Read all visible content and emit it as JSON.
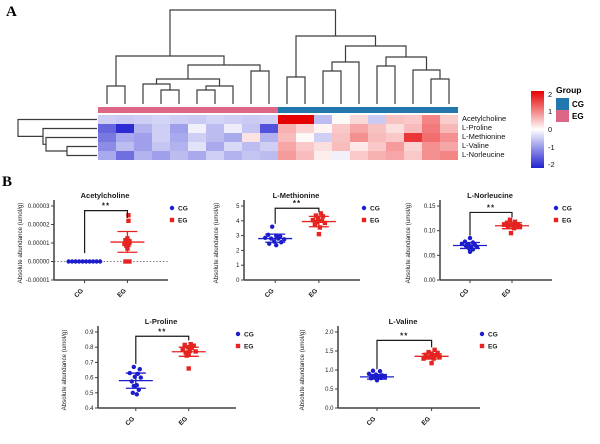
{
  "figure": {
    "panel_a_label": "A",
    "panel_b_label": "B"
  },
  "colors": {
    "point_blue": "#1c1ccd",
    "point_red": "#e52421",
    "axis": "#404040",
    "heat_red": "#e60000",
    "heat_blue": "#2222d0",
    "cg_group": "#2277ad",
    "eg_group": "#dd6686",
    "dendrogram": "#3c3c3c"
  },
  "chart_data": [
    {
      "id": "heatmap",
      "type": "heatmap",
      "row_labels": [
        "Acetylcholine",
        "L-Proline",
        "L-Methionine",
        "L-Valine",
        "L-Norleucine"
      ],
      "col_group_bar": [
        {
          "group": "EG",
          "count": 10
        },
        {
          "group": "CG",
          "count": 10
        }
      ],
      "zlim": [
        -2,
        2
      ],
      "colorbar_ticks": [
        "2",
        "1",
        "0",
        "-1",
        "-2"
      ],
      "legend_title": "Group",
      "legend_entries": [
        {
          "label": "CG",
          "color": "#2277ad"
        },
        {
          "label": "EG",
          "color": "#dd6686"
        }
      ],
      "values": [
        [
          -0.5,
          -0.55,
          -0.5,
          -0.45,
          -0.5,
          -0.55,
          -0.45,
          -0.5,
          -0.55,
          -0.5,
          2.3,
          2.6,
          -0.7,
          0.05,
          0.35,
          -0.55,
          0.55,
          0.5,
          1.1,
          0.45
        ],
        [
          -1.6,
          -2.2,
          -0.8,
          -0.5,
          -1.0,
          -0.15,
          -0.7,
          -0.2,
          -0.6,
          -1.8,
          0.7,
          0.4,
          0.1,
          0.5,
          0.8,
          0.55,
          0.3,
          0.6,
          1.2,
          0.65
        ],
        [
          -1.4,
          -0.9,
          -1.0,
          -0.5,
          -0.9,
          -0.5,
          -0.7,
          -0.9,
          0.25,
          -0.8,
          0.6,
          0.05,
          -0.5,
          0.55,
          1.0,
          0.6,
          0.5,
          1.8,
          1.3,
          1.0
        ],
        [
          -1.2,
          -0.7,
          -1.0,
          -0.6,
          -0.8,
          -0.3,
          -0.9,
          -0.4,
          -0.7,
          -0.5,
          0.8,
          0.5,
          0.3,
          0.6,
          0.2,
          0.5,
          0.9,
          0.4,
          1.0,
          0.8
        ],
        [
          -0.9,
          -1.5,
          -0.8,
          -1.0,
          -0.7,
          -0.9,
          -0.5,
          -0.8,
          -0.6,
          -0.7,
          0.9,
          0.6,
          0.15,
          -0.15,
          0.5,
          0.7,
          0.8,
          0.5,
          1.0,
          1.1
        ]
      ]
    },
    {
      "id": "acetylcholine",
      "type": "scatter",
      "title": "Acetylcholine",
      "ylabel": "Absolute abundance (umol/g)",
      "categories": [
        "CG",
        "EG"
      ],
      "ylim": [
        -1e-05,
        3e-05
      ],
      "yticks": [
        [
          -1e-05,
          "-0.00001"
        ],
        [
          0,
          "0.00000"
        ],
        [
          1e-05,
          "0.00001"
        ],
        [
          2e-05,
          "0.00002"
        ],
        [
          3e-05,
          "0.00003"
        ]
      ],
      "zero_line": true,
      "cg_points": [
        [
          -16,
          0
        ],
        [
          -12.5,
          0
        ],
        [
          -9,
          0
        ],
        [
          -5.5,
          0
        ],
        [
          -2,
          0
        ],
        [
          1.5,
          0
        ],
        [
          5,
          0
        ],
        [
          8.5,
          0
        ],
        [
          12,
          0
        ],
        [
          15.5,
          0
        ]
      ],
      "eg_points": [
        [
          1,
          2.5e-05
        ],
        [
          1,
          2.2e-05
        ],
        [
          0,
          1.25e-05
        ],
        [
          -2,
          1.15e-05
        ],
        [
          2,
          1.1e-05
        ],
        [
          -1,
          1.05e-05
        ],
        [
          2,
          1e-05
        ],
        [
          -3,
          9.5e-06
        ],
        [
          1,
          9e-06
        ],
        [
          -1,
          8.5e-06
        ],
        [
          0,
          7e-06
        ],
        [
          -2,
          0
        ],
        [
          2,
          0
        ]
      ],
      "cg_stats": null,
      "eg_stats": {
        "mean": 1.05e-05,
        "lo": 5e-06,
        "hi": 1.62e-05
      },
      "sig": {
        "label": "**",
        "top": 2.75e-05,
        "left_drop": 4.5e-06,
        "right_drop": 2.35e-05
      }
    },
    {
      "id": "methionine",
      "type": "scatter",
      "title": "L-Methionine",
      "ylabel": "Absolute abundance (umol/g)",
      "categories": [
        "CG",
        "EG"
      ],
      "ylim": [
        0,
        5
      ],
      "yticks": [
        [
          0,
          "0"
        ],
        [
          1,
          "1"
        ],
        [
          2,
          "2"
        ],
        [
          3,
          "3"
        ],
        [
          4,
          "4"
        ],
        [
          5,
          "5"
        ]
      ],
      "zero_line": false,
      "cg_points": [
        [
          -3,
          3.6
        ],
        [
          -7,
          3.05
        ],
        [
          1,
          3.0
        ],
        [
          5,
          2.95
        ],
        [
          -10,
          2.85
        ],
        [
          -4,
          2.8
        ],
        [
          3,
          2.8
        ],
        [
          9,
          2.75
        ],
        [
          -1,
          2.6
        ],
        [
          6,
          2.55
        ],
        [
          -6,
          2.45
        ],
        [
          1,
          2.35
        ]
      ],
      "eg_points": [
        [
          2,
          4.5
        ],
        [
          -3,
          4.35
        ],
        [
          4,
          4.3
        ],
        [
          -1,
          4.15
        ],
        [
          -6,
          4.05
        ],
        [
          3,
          4.0
        ],
        [
          -2,
          3.9
        ],
        [
          6,
          3.85
        ],
        [
          -4,
          3.75
        ],
        [
          1,
          3.55
        ],
        [
          0,
          3.1
        ]
      ],
      "cg_stats": {
        "mean": 2.8,
        "lo": 2.55,
        "hi": 3.1
      },
      "eg_stats": {
        "mean": 3.95,
        "lo": 3.6,
        "hi": 4.3
      },
      "sig": {
        "label": "**",
        "top": 4.85,
        "left_drop": 3.8,
        "right_drop": 4.6
      }
    },
    {
      "id": "norleucine",
      "type": "scatter",
      "title": "L-Norleucine",
      "ylabel": "Absolute abundance (umol/g)",
      "categories": [
        "CG",
        "EG"
      ],
      "ylim": [
        0,
        0.15
      ],
      "yticks": [
        [
          0,
          "0.00"
        ],
        [
          0.05,
          "0.05"
        ],
        [
          0.1,
          "0.10"
        ],
        [
          0.15,
          "0.15"
        ]
      ],
      "zero_line": false,
      "cg_points": [
        [
          0,
          0.085
        ],
        [
          -5,
          0.078
        ],
        [
          3,
          0.076
        ],
        [
          -8,
          0.073
        ],
        [
          -2,
          0.072
        ],
        [
          5,
          0.071
        ],
        [
          -4,
          0.069
        ],
        [
          1,
          0.068
        ],
        [
          7,
          0.067
        ],
        [
          -1,
          0.064
        ],
        [
          3,
          0.062
        ],
        [
          0,
          0.057
        ]
      ],
      "eg_points": [
        [
          -2,
          0.122
        ],
        [
          3,
          0.118
        ],
        [
          -5,
          0.116
        ],
        [
          1,
          0.114
        ],
        [
          6,
          0.113
        ],
        [
          -8,
          0.112
        ],
        [
          -1,
          0.111
        ],
        [
          4,
          0.11
        ],
        [
          8,
          0.109
        ],
        [
          -4,
          0.108
        ],
        [
          2,
          0.105
        ],
        [
          -1,
          0.095
        ]
      ],
      "cg_stats": {
        "mean": 0.07,
        "lo": 0.064,
        "hi": 0.076
      },
      "eg_stats": {
        "mean": 0.11,
        "lo": 0.104,
        "hi": 0.116
      },
      "sig": {
        "label": "**",
        "top": 0.137,
        "left_drop": 0.09,
        "right_drop": 0.127
      }
    },
    {
      "id": "proline",
      "type": "scatter",
      "title": "L-Proline",
      "ylabel": "Absolute abundance (umol/g)",
      "categories": [
        "CG",
        "EG"
      ],
      "ylim": [
        0.4,
        0.9
      ],
      "yticks": [
        [
          0.4,
          "0.4"
        ],
        [
          0.5,
          "0.5"
        ],
        [
          0.6,
          "0.6"
        ],
        [
          0.7,
          "0.7"
        ],
        [
          0.8,
          "0.8"
        ],
        [
          0.9,
          "0.9"
        ]
      ],
      "zero_line": false,
      "cg_points": [
        [
          -2,
          0.67
        ],
        [
          4,
          0.655
        ],
        [
          -6,
          0.63
        ],
        [
          2,
          0.625
        ],
        [
          -1,
          0.605
        ],
        [
          5,
          0.6
        ],
        [
          -4,
          0.575
        ],
        [
          1,
          0.55
        ],
        [
          -2,
          0.545
        ],
        [
          3,
          0.52
        ],
        [
          -3,
          0.5
        ],
        [
          1,
          0.49
        ]
      ],
      "eg_points": [
        [
          2,
          0.82
        ],
        [
          -4,
          0.815
        ],
        [
          5,
          0.81
        ],
        [
          -1,
          0.8
        ],
        [
          3,
          0.795
        ],
        [
          -6,
          0.785
        ],
        [
          1,
          0.775
        ],
        [
          7,
          0.772
        ],
        [
          -3,
          0.765
        ],
        [
          0,
          0.755
        ],
        [
          -2,
          0.745
        ],
        [
          0,
          0.66
        ]
      ],
      "cg_stats": {
        "mean": 0.58,
        "lo": 0.53,
        "hi": 0.63
      },
      "eg_stats": {
        "mean": 0.77,
        "lo": 0.74,
        "hi": 0.8
      },
      "sig": {
        "label": "**",
        "top": 0.872,
        "left_drop": 0.69,
        "right_drop": 0.845
      }
    },
    {
      "id": "valine",
      "type": "scatter",
      "title": "L-Valine",
      "ylabel": "Absolute abundance (umol/g)",
      "categories": [
        "CG",
        "EG"
      ],
      "ylim": [
        0,
        2
      ],
      "yticks": [
        [
          0,
          "0.0"
        ],
        [
          0.5,
          "0.5"
        ],
        [
          1.0,
          "1.0"
        ],
        [
          1.5,
          "1.5"
        ],
        [
          2.0,
          "2.0"
        ]
      ],
      "zero_line": false,
      "cg_points": [
        [
          -4,
          0.98
        ],
        [
          3,
          0.97
        ],
        [
          -8,
          0.9
        ],
        [
          -1,
          0.88
        ],
        [
          5,
          0.86
        ],
        [
          -5,
          0.84
        ],
        [
          1,
          0.83
        ],
        [
          8,
          0.82
        ],
        [
          -2,
          0.8
        ],
        [
          4,
          0.79
        ],
        [
          -6,
          0.78
        ],
        [
          0,
          0.73
        ]
      ],
      "eg_points": [
        [
          3,
          1.53
        ],
        [
          -3,
          1.47
        ],
        [
          6,
          1.45
        ],
        [
          0,
          1.43
        ],
        [
          -6,
          1.4
        ],
        [
          4,
          1.38
        ],
        [
          -1,
          1.36
        ],
        [
          8,
          1.35
        ],
        [
          -4,
          1.33
        ],
        [
          2,
          1.3
        ],
        [
          -8,
          1.3
        ],
        [
          0,
          1.18
        ]
      ],
      "cg_stats": {
        "mean": 0.82,
        "lo": 0.76,
        "hi": 0.88
      },
      "eg_stats": {
        "mean": 1.36,
        "lo": 1.29,
        "hi": 1.43
      },
      "sig": {
        "label": "**",
        "top": 1.78,
        "left_drop": 1.02,
        "right_drop": 1.6
      }
    }
  ]
}
